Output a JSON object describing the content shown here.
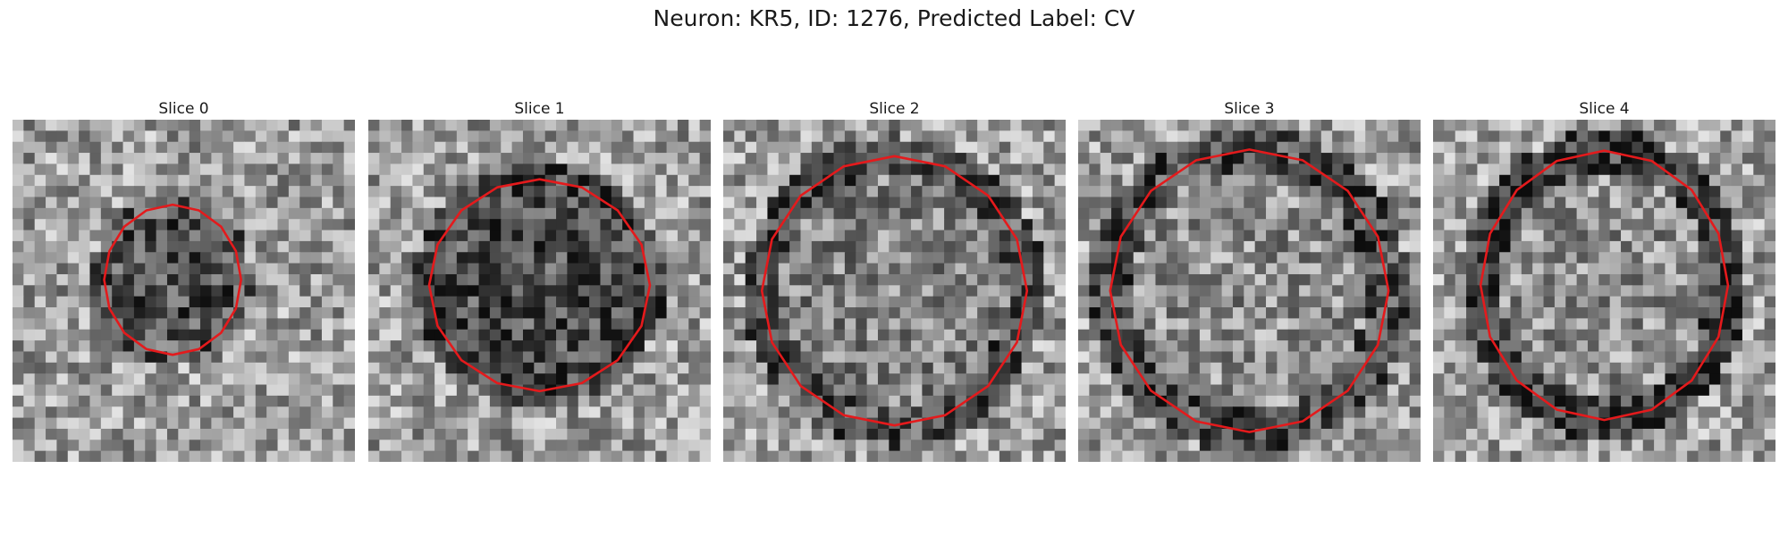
{
  "figure": {
    "title": "Neuron: KR5, ID: 1276, Predicted Label: CV"
  },
  "panels": [
    {
      "title": "Slice 0",
      "outline_color": "#e41a1c",
      "contour": "small"
    },
    {
      "title": "Slice 1",
      "outline_color": "#e41a1c",
      "contour": "medium"
    },
    {
      "title": "Slice 2",
      "outline_color": "#e41a1c",
      "contour": "large"
    },
    {
      "title": "Slice 3",
      "outline_color": "#e41a1c",
      "contour": "large"
    },
    {
      "title": "Slice 4",
      "outline_color": "#e41a1c",
      "contour": "large"
    }
  ]
}
